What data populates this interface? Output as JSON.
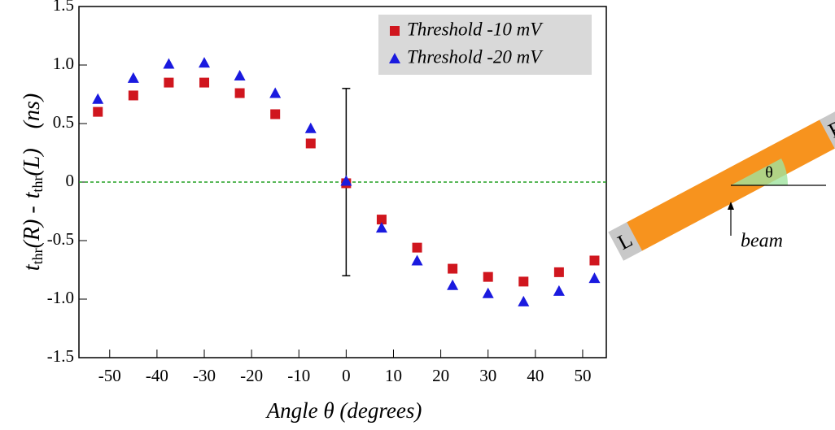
{
  "chart_data": {
    "type": "scatter",
    "x_label": "Angle θ (degrees)",
    "y_label": [
      "t",
      "thr",
      "(R) - ",
      "t",
      "thr",
      "(L)",
      "(ns)"
    ],
    "x": [
      -52.5,
      -45,
      -37.5,
      -30,
      -22.5,
      -15,
      -7.5,
      0,
      7.5,
      15,
      22.5,
      30,
      37.5,
      45,
      52.5
    ],
    "series": [
      {
        "name": "Threshold -10 mV",
        "color": "#d0161e",
        "marker": "square",
        "values": [
          0.6,
          0.74,
          0.85,
          0.85,
          0.76,
          0.58,
          0.33,
          -0.01,
          -0.32,
          -0.56,
          -0.74,
          -0.81,
          -0.85,
          -0.77,
          -0.67
        ]
      },
      {
        "name": "Threshold -20 mV",
        "color": "#1a1adf",
        "marker": "triangle",
        "values": [
          0.71,
          0.89,
          1.01,
          1.02,
          0.91,
          0.76,
          0.46,
          0.01,
          -0.39,
          -0.67,
          -0.88,
          -0.95,
          -1.02,
          -0.93,
          -0.82
        ]
      }
    ],
    "error_bar": {
      "x": 0,
      "y": 0,
      "err": 0.8
    },
    "hline": {
      "y": 0,
      "color": "#22a022"
    },
    "xlim": [
      -56.5,
      55
    ],
    "ylim": [
      -1.5,
      1.5
    ],
    "xticks": [
      -50,
      -40,
      -30,
      -20,
      -10,
      0,
      10,
      20,
      30,
      40,
      50
    ],
    "yticks": [
      1.5,
      {
        "value": 1.0,
        "label": "1.0"
      },
      0.5,
      0,
      -0.5,
      {
        "value": -1.0,
        "label": "-1.0"
      },
      -1.5
    ],
    "legend": "upper right"
  },
  "diagram": {
    "left_end": "L",
    "right_end": "R",
    "angle": "θ",
    "beam": "beam"
  }
}
